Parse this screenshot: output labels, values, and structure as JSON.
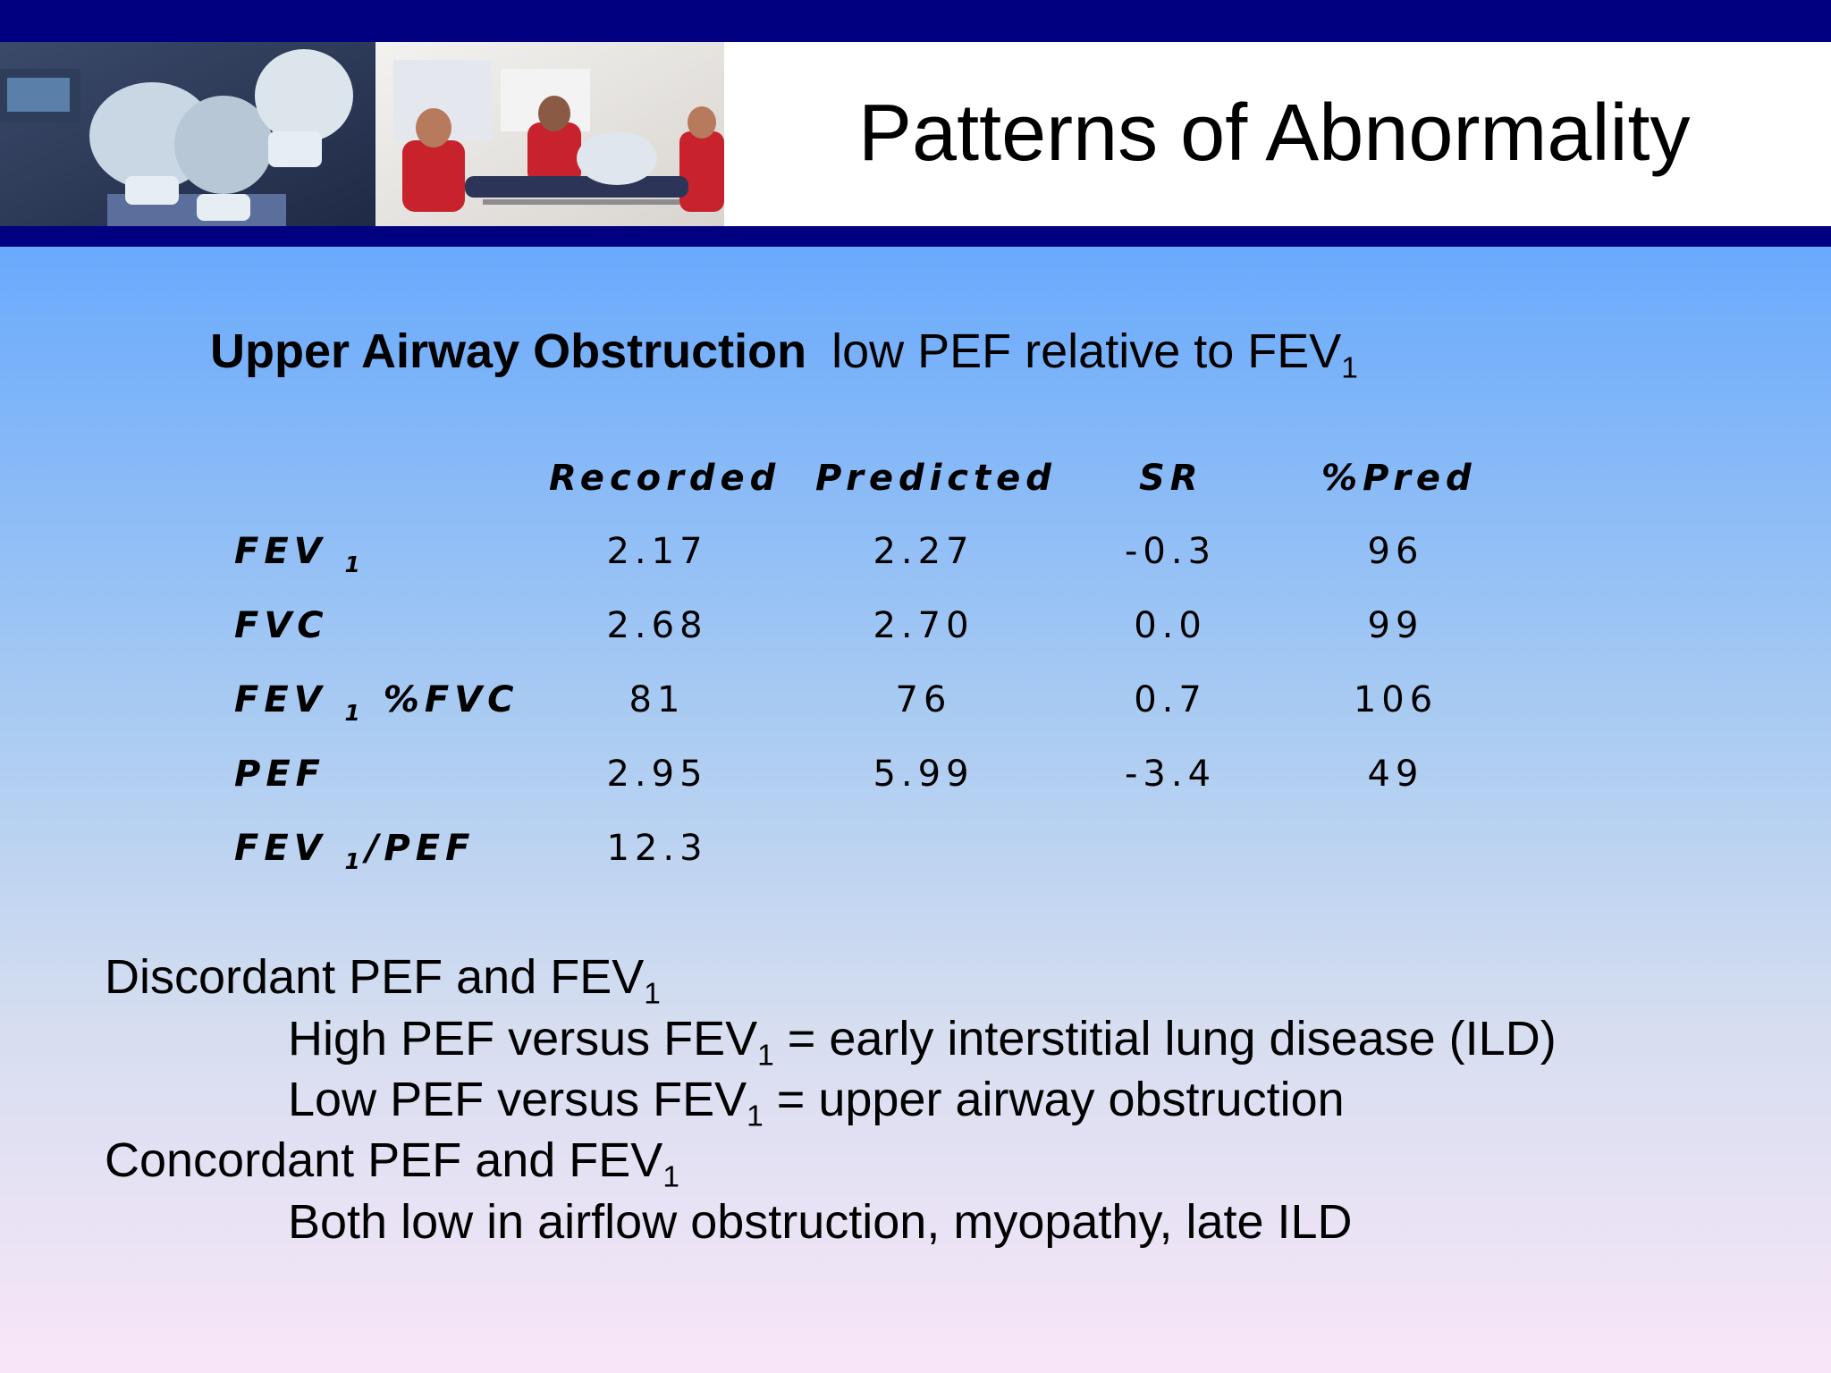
{
  "title": "Patterns of Abnormality",
  "subtitle": {
    "bold": "Upper Airway Obstruction",
    "text": "low PEF relative to FEV",
    "sub": "1"
  },
  "table": {
    "headers": [
      "Recorded",
      "Predicted",
      "SR",
      "%Pred"
    ],
    "rows": [
      {
        "label": "FEV",
        "label_sub": "1",
        "label_suffix": "",
        "values": [
          "2.17",
          "2.27",
          "-0.3",
          "96"
        ]
      },
      {
        "label": "FVC",
        "label_sub": "",
        "label_suffix": "",
        "values": [
          "2.68",
          "2.70",
          "0.0",
          "99"
        ]
      },
      {
        "label": "FEV",
        "label_sub": "1",
        "label_suffix": "%FVC",
        "values": [
          "81",
          "76",
          "0.7",
          "106"
        ]
      },
      {
        "label": "PEF",
        "label_sub": "",
        "label_suffix": "",
        "values": [
          "2.95",
          "5.99",
          "-3.4",
          "49"
        ]
      },
      {
        "label": "FEV",
        "label_sub": "1",
        "label_suffix": "/PEF",
        "values": [
          "12.3",
          "",
          "",
          ""
        ]
      }
    ]
  },
  "bullets": [
    {
      "text": "Discordant PEF and FEV",
      "sub": "1",
      "after": ""
    },
    {
      "text": "High PEF versus FEV",
      "sub": "1",
      "after": " = early interstitial lung disease (ILD)"
    },
    {
      "text": "Low PEF versus  FEV",
      "sub": "1",
      "after": " = upper airway obstruction"
    },
    {
      "text": "Concordant PEF and FEV",
      "sub": "1",
      "after": ""
    },
    {
      "text": "Both low in airflow obstruction, myopathy, late ILD",
      "sub": "",
      "after": ""
    }
  ],
  "colors": {
    "bar": "#000080",
    "bg_top": "#6aaafc",
    "bg_bottom": "#f8e6f8"
  }
}
